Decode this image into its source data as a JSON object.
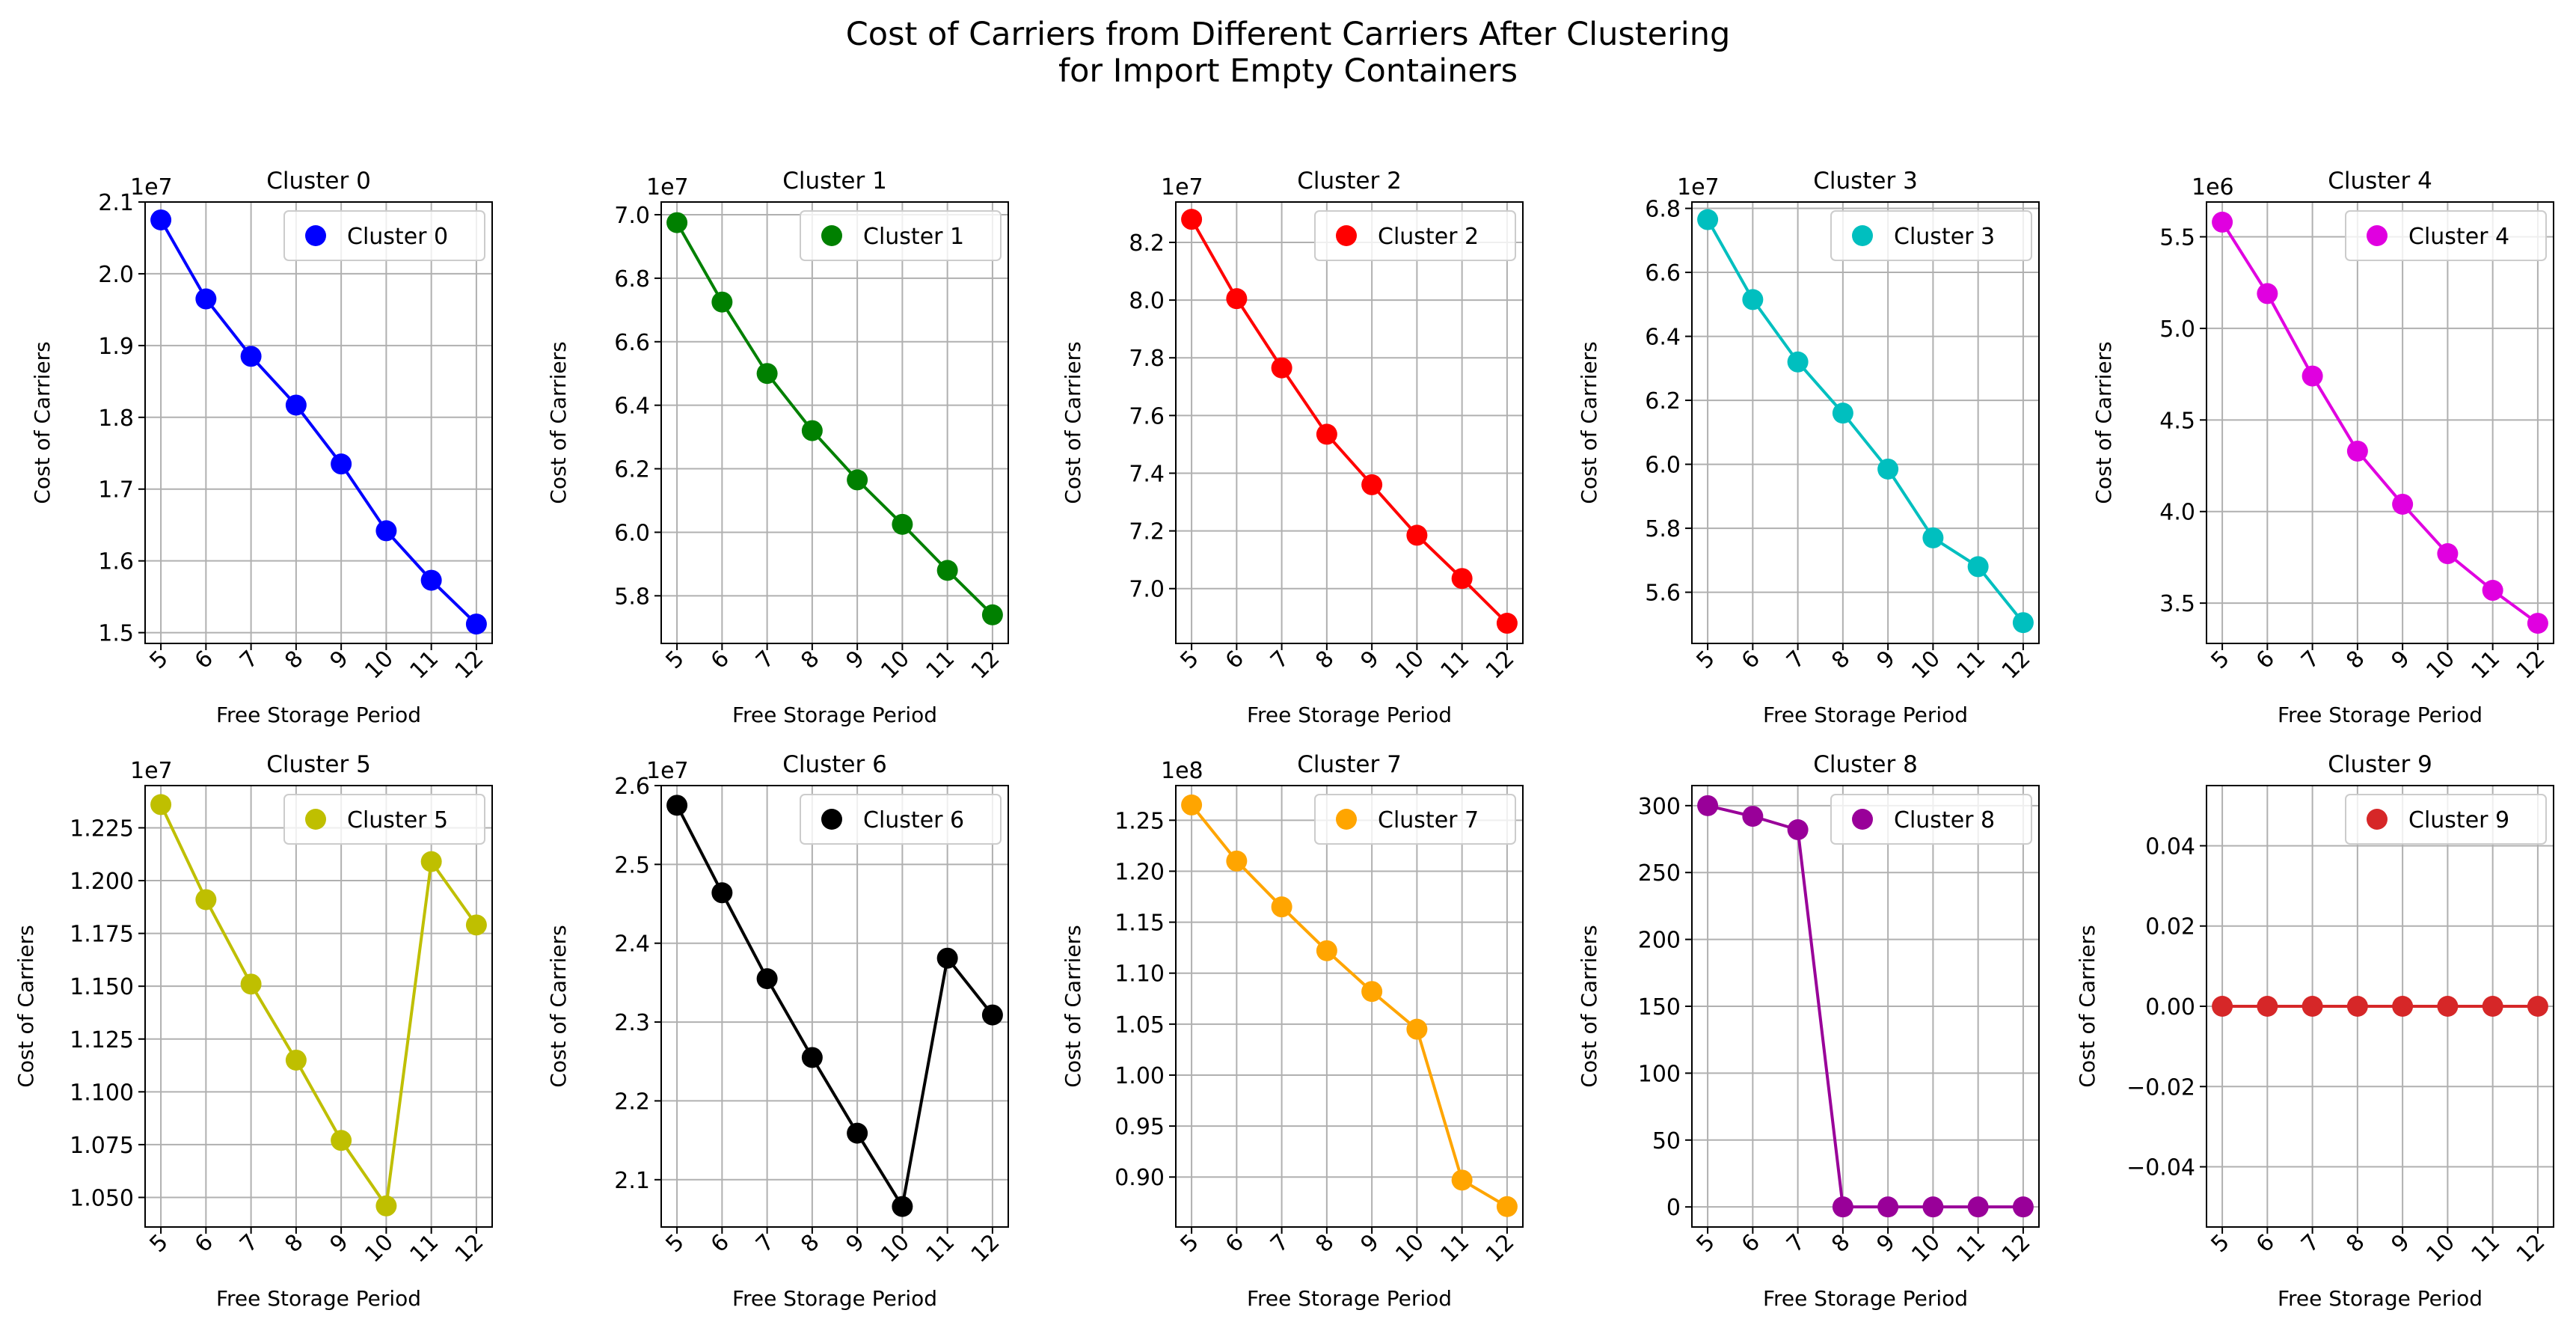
{
  "title_line1": "Cost of Carriers from Different Carriers After Clustering",
  "title_line2": "for Import Empty Containers",
  "chart_data": [
    {
      "type": "line",
      "title": "Cluster 0",
      "legend": "Cluster 0",
      "color": "#0000ff",
      "xlabel": "Free Storage Period",
      "ylabel": "Cost of Carriers",
      "x": [
        5,
        6,
        7,
        8,
        9,
        10,
        11,
        12
      ],
      "values": [
        20.75,
        19.65,
        18.85,
        18.17,
        17.35,
        16.42,
        15.73,
        15.12
      ],
      "ylim": [
        14.85,
        21.0
      ],
      "yticks": [
        1.5,
        1.6,
        1.7,
        1.8,
        1.9,
        2.0,
        2.1
      ],
      "ytick_scale": 10,
      "multiplier": "1e7"
    },
    {
      "type": "line",
      "title": "Cluster 1",
      "legend": "Cluster 1",
      "color": "#008000",
      "xlabel": "Free Storage Period",
      "ylabel": "Cost of Carriers",
      "x": [
        5,
        6,
        7,
        8,
        9,
        10,
        11,
        12
      ],
      "values": [
        69.75,
        67.25,
        65.0,
        63.2,
        61.65,
        60.25,
        58.8,
        57.4
      ],
      "ylim": [
        56.5,
        70.4
      ],
      "yticks": [
        5.8,
        6.0,
        6.2,
        6.4,
        6.6,
        6.8,
        7.0
      ],
      "ytick_scale": 10,
      "multiplier": "1e7"
    },
    {
      "type": "line",
      "title": "Cluster 2",
      "legend": "Cluster 2",
      "color": "#ff0000",
      "xlabel": "Free Storage Period",
      "ylabel": "Cost of Carriers",
      "x": [
        5,
        6,
        7,
        8,
        9,
        10,
        11,
        12
      ],
      "values": [
        82.8,
        80.05,
        77.65,
        75.35,
        73.6,
        71.85,
        70.35,
        68.8
      ],
      "ylim": [
        68.1,
        83.4
      ],
      "yticks": [
        7.0,
        7.2,
        7.4,
        7.6,
        7.8,
        8.0,
        8.2
      ],
      "ytick_scale": 10,
      "multiplier": "1e7"
    },
    {
      "type": "line",
      "title": "Cluster 3",
      "legend": "Cluster 3",
      "color": "#00bfbf",
      "xlabel": "Free Storage Period",
      "ylabel": "Cost of Carriers",
      "x": [
        5,
        6,
        7,
        8,
        9,
        10,
        11,
        12
      ],
      "values": [
        67.65,
        65.15,
        63.2,
        61.6,
        59.85,
        57.7,
        56.8,
        55.05
      ],
      "ylim": [
        54.4,
        68.2
      ],
      "yticks": [
        5.6,
        5.8,
        6.0,
        6.2,
        6.4,
        6.6,
        6.8
      ],
      "ytick_scale": 10,
      "multiplier": "1e7"
    },
    {
      "type": "line",
      "title": "Cluster 4",
      "legend": "Cluster 4",
      "color": "#e000e0",
      "xlabel": "Free Storage Period",
      "ylabel": "Cost of Carriers",
      "x": [
        5,
        6,
        7,
        8,
        9,
        10,
        11,
        12
      ],
      "values": [
        5.58,
        5.19,
        4.74,
        4.33,
        4.04,
        3.77,
        3.57,
        3.39
      ],
      "ylim": [
        3.28,
        5.69
      ],
      "yticks": [
        3.5,
        4.0,
        4.5,
        5.0,
        5.5
      ],
      "ytick_scale": 1,
      "multiplier": "1e6"
    },
    {
      "type": "line",
      "title": "Cluster 5",
      "legend": "Cluster 5",
      "color": "#bfbf00",
      "xlabel": "Free Storage Period",
      "ylabel": "Cost of Carriers",
      "x": [
        5,
        6,
        7,
        8,
        9,
        10,
        11,
        12
      ],
      "values": [
        12.36,
        11.91,
        11.51,
        11.15,
        10.77,
        10.46,
        12.09,
        11.79
      ],
      "ylim": [
        10.36,
        12.45
      ],
      "yticks": [
        1.05,
        1.075,
        1.1,
        1.125,
        1.15,
        1.175,
        1.2,
        1.225
      ],
      "ytick_scale": 10,
      "multiplier": "1e7"
    },
    {
      "type": "line",
      "title": "Cluster 6",
      "legend": "Cluster 6",
      "color": "#000000",
      "xlabel": "Free Storage Period",
      "ylabel": "Cost of Carriers",
      "x": [
        5,
        6,
        7,
        8,
        9,
        10,
        11,
        12
      ],
      "values": [
        25.75,
        24.64,
        23.55,
        22.55,
        21.59,
        20.66,
        23.81,
        23.09
      ],
      "ylim": [
        20.4,
        26.0
      ],
      "yticks": [
        2.1,
        2.2,
        2.3,
        2.4,
        2.5,
        2.6
      ],
      "ytick_scale": 10,
      "multiplier": "1e7"
    },
    {
      "type": "line",
      "title": "Cluster 7",
      "legend": "Cluster 7",
      "color": "#ffa500",
      "xlabel": "Free Storage Period",
      "ylabel": "Cost of Carriers",
      "x": [
        5,
        6,
        7,
        8,
        9,
        10,
        11,
        12
      ],
      "values": [
        1.265,
        1.21,
        1.165,
        1.122,
        1.082,
        1.045,
        0.897,
        0.871
      ],
      "ylim": [
        0.851,
        1.284
      ],
      "yticks": [
        0.9,
        0.95,
        1.0,
        1.05,
        1.1,
        1.15,
        1.2,
        1.25
      ],
      "ytick_scale": 1,
      "multiplier": "1e8"
    },
    {
      "type": "line",
      "title": "Cluster 8",
      "legend": "Cluster 8",
      "color": "#990099",
      "xlabel": "Free Storage Period",
      "ylabel": "Cost of Carriers",
      "x": [
        5,
        6,
        7,
        8,
        9,
        10,
        11,
        12
      ],
      "values": [
        300,
        292,
        282,
        0,
        0,
        0,
        0,
        0
      ],
      "ylim": [
        -15,
        315
      ],
      "yticks": [
        0,
        50,
        100,
        150,
        200,
        250,
        300
      ],
      "ytick_scale": 1,
      "multiplier": ""
    },
    {
      "type": "line",
      "title": "Cluster 9",
      "legend": "Cluster 9",
      "color": "#d62728",
      "xlabel": "Free Storage Period",
      "ylabel": "Cost of Carriers",
      "x": [
        5,
        6,
        7,
        8,
        9,
        10,
        11,
        12
      ],
      "values": [
        0,
        0,
        0,
        0,
        0,
        0,
        0,
        0
      ],
      "ylim": [
        -0.055,
        0.055
      ],
      "yticks": [
        -0.04,
        -0.02,
        0.0,
        0.02,
        0.04
      ],
      "ytick_scale": 1,
      "multiplier": ""
    }
  ],
  "tick_labels": {
    "0": [
      "1.5",
      "1.6",
      "1.7",
      "1.8",
      "1.9",
      "2.0",
      "2.1"
    ],
    "1": [
      "5.8",
      "6.0",
      "6.2",
      "6.4",
      "6.6",
      "6.8",
      "7.0"
    ],
    "2": [
      "7.0",
      "7.2",
      "7.4",
      "7.6",
      "7.8",
      "8.0",
      "8.2"
    ],
    "3": [
      "5.6",
      "5.8",
      "6.0",
      "6.2",
      "6.4",
      "6.6",
      "6.8"
    ],
    "4": [
      "3.5",
      "4.0",
      "4.5",
      "5.0",
      "5.5"
    ],
    "5": [
      "1.050",
      "1.075",
      "1.100",
      "1.125",
      "1.150",
      "1.175",
      "1.200",
      "1.225"
    ],
    "6": [
      "2.1",
      "2.2",
      "2.3",
      "2.4",
      "2.5",
      "2.6"
    ],
    "7": [
      "0.90",
      "0.95",
      "1.00",
      "1.05",
      "1.10",
      "1.15",
      "1.20",
      "1.25"
    ],
    "8": [
      "0",
      "50",
      "100",
      "150",
      "200",
      "250",
      "300"
    ],
    "9": [
      "−0.04",
      "−0.02",
      "0.00",
      "0.02",
      "0.04"
    ]
  }
}
